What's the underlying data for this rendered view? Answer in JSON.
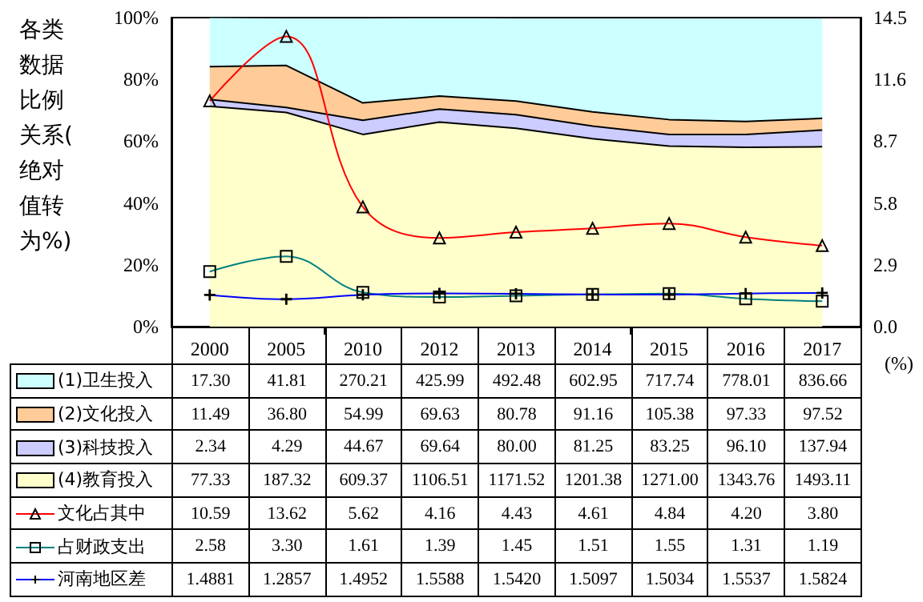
{
  "chart_data": {
    "type": "area",
    "stacked": true,
    "ylabel": "各类数据比例关系(绝对值转为%)",
    "y2label": "(%)",
    "categories": [
      "2000",
      "2005",
      "2010",
      "2012",
      "2013",
      "2014",
      "2015",
      "2016",
      "2017"
    ],
    "ylim": [
      0,
      100
    ],
    "yticks": [
      {
        "value": 0,
        "label": "0%"
      },
      {
        "value": 20,
        "label": "20%"
      },
      {
        "value": 40,
        "label": "40%"
      },
      {
        "value": 60,
        "label": "60%"
      },
      {
        "value": 80,
        "label": "80%"
      },
      {
        "value": 100,
        "label": "100%"
      }
    ],
    "y2lim": [
      0,
      14.5
    ],
    "y2ticks": [
      {
        "value": 0,
        "label": "0.0"
      },
      2.9,
      5.8,
      8.7,
      11.6,
      14.5
    ],
    "legend": "bottom",
    "annotations": [
      "17.30",
      "41.81",
      "270.21",
      "425.99",
      "492.48",
      "602.95",
      "717.74",
      "778.01",
      "836.66",
      "11.49",
      "36.80",
      "54.99",
      "69.63",
      "80.78",
      "91.16",
      "105.38",
      "97.33",
      "97.52",
      "2.34",
      "4.29",
      "44.67",
      "69.64",
      "80.00",
      "81.25",
      "83.25",
      "96.10",
      "137.94",
      "77.33",
      "187.32",
      "609.37",
      "1106.51",
      "1171.52",
      "1201.38",
      "1271.00",
      "1343.76",
      "1493.11"
    ],
    "series": [
      {
        "name": "(4)教育投入",
        "color": "#ffffcc",
        "values": [
          71.3,
          69.3,
          62.2,
          66.2,
          64.2,
          60.8,
          58.4,
          58.0,
          58.2
        ]
      },
      {
        "name": "(3)科技投入",
        "color": "#ccccff",
        "values": [
          2.2,
          1.6,
          4.6,
          4.2,
          4.4,
          4.1,
          3.8,
          4.2,
          5.4
        ]
      },
      {
        "name": "(2)文化投入",
        "color": "#ffcc99",
        "values": [
          10.6,
          13.6,
          5.6,
          4.2,
          4.4,
          4.6,
          4.8,
          4.2,
          3.8
        ]
      },
      {
        "name": "(1)卫生投入",
        "color": "#ccffff",
        "values": [
          16.0,
          15.5,
          27.6,
          25.5,
          27.0,
          30.5,
          33.0,
          33.6,
          32.6
        ]
      },
      {
        "name": "文化占其中",
        "type": "line",
        "axis": "y2",
        "marker": "triangle",
        "color": "#ff0000",
        "values": [
          10.59,
          13.62,
          5.62,
          4.16,
          4.43,
          4.61,
          4.84,
          4.2,
          3.8
        ],
        "value_labels": [
          "10.59",
          "13.62",
          "5.62",
          "4.16",
          "4.43",
          "4.61",
          "4.84",
          "4.20",
          "3.80"
        ]
      },
      {
        "name": "占财政支出",
        "type": "line",
        "axis": "y2",
        "marker": "square",
        "color": "#008080",
        "values": [
          2.58,
          3.3,
          1.61,
          1.39,
          1.45,
          1.51,
          1.55,
          1.31,
          1.19
        ],
        "value_labels": [
          "2.58",
          "3.30",
          "1.61",
          "1.39",
          "1.45",
          "1.51",
          "1.55",
          "1.31",
          "1.19"
        ]
      },
      {
        "name": "河南地区差",
        "type": "line",
        "axis": "y2",
        "marker": "cross",
        "color": "#0000ff",
        "values": [
          1.4881,
          1.2857,
          1.4952,
          1.5588,
          1.542,
          1.5097,
          1.5034,
          1.5537,
          1.5824
        ],
        "value_labels": [
          "1.4881",
          "1.2857",
          "1.4952",
          "1.5588",
          "1.5420",
          "1.5097",
          "1.5034",
          "1.5537",
          "1.5824"
        ]
      }
    ]
  }
}
